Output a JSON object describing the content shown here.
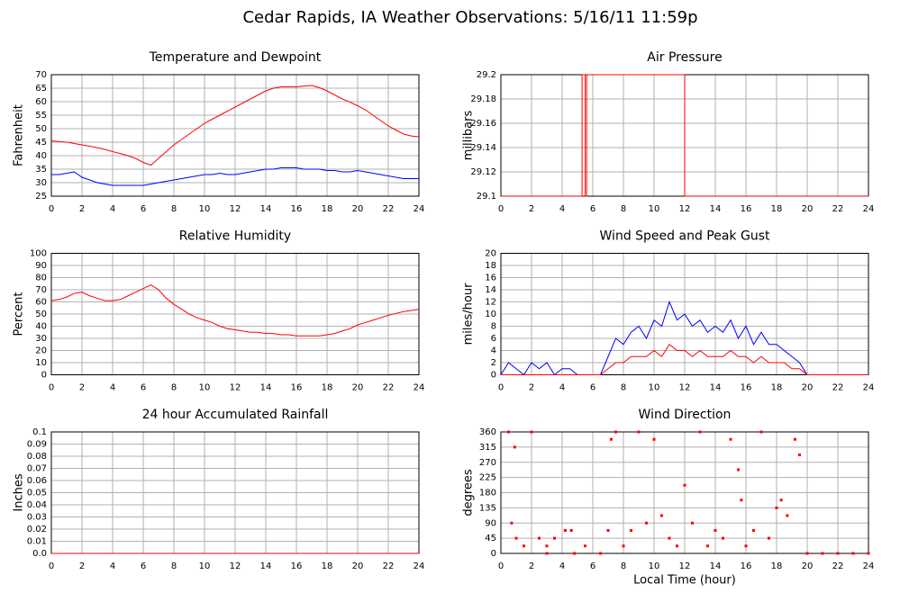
{
  "title": "Cedar Rapids, IA Weather Observations: 5/16/11 11:59p",
  "chart_data": [
    {
      "type": "line",
      "title": "Temperature and Dewpoint",
      "ylabel": "Fahrenheit",
      "x": [
        0,
        0.5,
        1,
        1.5,
        2,
        2.5,
        3,
        3.5,
        4,
        4.5,
        5,
        5.5,
        6,
        6.5,
        7,
        7.5,
        8,
        8.5,
        9,
        9.5,
        10,
        10.5,
        11,
        11.5,
        12,
        12.5,
        13,
        13.5,
        14,
        14.5,
        15,
        15.5,
        16,
        16.5,
        17,
        17.5,
        18,
        18.5,
        19,
        19.5,
        20,
        20.5,
        21,
        21.5,
        22,
        22.5,
        23,
        23.5,
        24
      ],
      "series": [
        {
          "color": "#ff0000",
          "values": [
            45.5,
            45.2,
            45,
            44.5,
            44,
            43.5,
            43,
            42.3,
            41.5,
            40.8,
            40,
            39,
            37.5,
            36.5,
            39,
            41.5,
            44,
            46,
            48,
            50,
            52,
            53.5,
            55,
            56.5,
            58,
            59.5,
            61,
            62.5,
            64,
            65,
            65.5,
            65.5,
            65.5,
            65.8,
            66,
            65.2,
            64,
            62.5,
            61,
            59.8,
            58.5,
            57,
            55,
            53,
            51,
            49.5,
            48,
            47.3,
            47
          ]
        },
        {
          "color": "#0000ff",
          "values": [
            33,
            33,
            33.5,
            34,
            32,
            31,
            30,
            29.5,
            29,
            29,
            29,
            29,
            29,
            29.5,
            30,
            30.5,
            31,
            31.5,
            32,
            32.5,
            33,
            33,
            33.5,
            33,
            33,
            33.5,
            34,
            34.5,
            35,
            35,
            35.5,
            35.5,
            35.5,
            35,
            35,
            35,
            34.5,
            34.5,
            34,
            34,
            34.5,
            34,
            33.5,
            33,
            32.5,
            32,
            31.5,
            31.5,
            31.5
          ]
        }
      ],
      "xlim": [
        0,
        24
      ],
      "xticks": [
        0,
        2,
        4,
        6,
        8,
        10,
        12,
        14,
        16,
        18,
        20,
        22,
        24
      ],
      "ylim": [
        25,
        70
      ],
      "yticks": [
        25,
        30,
        35,
        40,
        45,
        50,
        55,
        60,
        65,
        70
      ],
      "grid": true
    },
    {
      "type": "line",
      "title": "Air Pressure",
      "ylabel": "millibars",
      "x": [
        0,
        5.3,
        5.3,
        5.5,
        5.5,
        5.6,
        5.6,
        12,
        12,
        24
      ],
      "series": [
        {
          "color": "#ff0000",
          "values": [
            29.1,
            29.1,
            29.2,
            29.2,
            29.1,
            29.1,
            29.2,
            29.2,
            29.1,
            29.1
          ]
        }
      ],
      "xlim": [
        0,
        24
      ],
      "xticks": [
        0,
        2,
        4,
        6,
        8,
        10,
        12,
        14,
        16,
        18,
        20,
        22,
        24
      ],
      "ylim": [
        29.1,
        29.2
      ],
      "yticks": [
        29.1,
        29.12,
        29.14,
        29.16,
        29.18,
        29.2
      ],
      "grid": true
    },
    {
      "type": "line",
      "title": "Relative Humidity",
      "ylabel": "Percent",
      "x": [
        0,
        0.5,
        1,
        1.5,
        2,
        2.5,
        3,
        3.5,
        4,
        4.5,
        5,
        5.5,
        6,
        6.5,
        7,
        7.5,
        8,
        8.5,
        9,
        9.5,
        10,
        10.5,
        11,
        11.5,
        12,
        12.5,
        13,
        13.5,
        14,
        14.5,
        15,
        15.5,
        16,
        16.5,
        17,
        17.5,
        18,
        18.5,
        19,
        19.5,
        20,
        20.5,
        21,
        21.5,
        22,
        22.5,
        23,
        23.5,
        24
      ],
      "series": [
        {
          "color": "#ff0000",
          "values": [
            61,
            62,
            64,
            67,
            68,
            65,
            63,
            61,
            61,
            62,
            65,
            68,
            71,
            74,
            70,
            63,
            58,
            54,
            50,
            47,
            45,
            43,
            40,
            38,
            37,
            36,
            35,
            35,
            34,
            34,
            33,
            33,
            32,
            32,
            32,
            32,
            33,
            34,
            36,
            38,
            41,
            43,
            45,
            47,
            49,
            50.5,
            52,
            53,
            54
          ]
        }
      ],
      "xlim": [
        0,
        24
      ],
      "xticks": [
        0,
        2,
        4,
        6,
        8,
        10,
        12,
        14,
        16,
        18,
        20,
        22,
        24
      ],
      "ylim": [
        0,
        100
      ],
      "yticks": [
        0,
        10,
        20,
        30,
        40,
        50,
        60,
        70,
        80,
        90,
        100
      ],
      "grid": true
    },
    {
      "type": "line",
      "title": "Wind Speed and Peak Gust",
      "ylabel": "miles/hour",
      "x": [
        0,
        0.5,
        1,
        1.5,
        2,
        2.5,
        3,
        3.5,
        4,
        4.5,
        5,
        5.5,
        6,
        6.5,
        7,
        7.5,
        8,
        8.5,
        9,
        9.5,
        10,
        10.5,
        11,
        11.5,
        12,
        12.5,
        13,
        13.5,
        14,
        14.5,
        15,
        15.5,
        16,
        16.5,
        17,
        17.5,
        18,
        18.5,
        19,
        19.5,
        20,
        20.5,
        21,
        21.5,
        22,
        22.5,
        23,
        23.5,
        24
      ],
      "series": [
        {
          "color": "#0000ff",
          "values": [
            0,
            2,
            1,
            0,
            2,
            1,
            2,
            0,
            1,
            1,
            0,
            0,
            0,
            0,
            3,
            6,
            5,
            7,
            8,
            6,
            9,
            8,
            12,
            9,
            10,
            8,
            9,
            7,
            8,
            7,
            9,
            6,
            8,
            5,
            7,
            5,
            5,
            4,
            3,
            2,
            0,
            0,
            0,
            0,
            0,
            0,
            0,
            0,
            0
          ]
        },
        {
          "color": "#ff0000",
          "values": [
            0,
            0,
            0,
            0,
            0,
            0,
            0,
            0,
            0,
            0,
            0,
            0,
            0,
            0,
            1,
            2,
            2,
            3,
            3,
            3,
            4,
            3,
            5,
            4,
            4,
            3,
            4,
            3,
            3,
            3,
            4,
            3,
            3,
            2,
            3,
            2,
            2,
            2,
            1,
            1,
            0,
            0,
            0,
            0,
            0,
            0,
            0,
            0,
            0
          ]
        }
      ],
      "xlim": [
        0,
        24
      ],
      "xticks": [
        0,
        2,
        4,
        6,
        8,
        10,
        12,
        14,
        16,
        18,
        20,
        22,
        24
      ],
      "ylim": [
        0,
        20
      ],
      "yticks": [
        0,
        2,
        4,
        6,
        8,
        10,
        12,
        14,
        16,
        18,
        20
      ],
      "grid": true
    },
    {
      "type": "line",
      "title": "24 hour Accumulated Rainfall",
      "ylabel": "Inches",
      "x": [
        0,
        24
      ],
      "series": [
        {
          "color": "#ff0000",
          "values": [
            0,
            0
          ]
        }
      ],
      "xlim": [
        0,
        24
      ],
      "xticks": [
        0,
        2,
        4,
        6,
        8,
        10,
        12,
        14,
        16,
        18,
        20,
        22,
        24
      ],
      "ylim": [
        0,
        0.1
      ],
      "yticks": [
        {
          "value": 0,
          "label": "0.0"
        },
        0.01,
        0.02,
        0.03,
        0.04,
        0.05,
        0.06,
        0.07,
        0.08,
        0.09,
        0.1
      ],
      "grid": true
    },
    {
      "type": "scatter",
      "title": "Wind Direction",
      "ylabel": "degrees",
      "xlabel": "Local Time (hour)",
      "x": [
        0.5,
        0.7,
        0.9,
        1,
        1.5,
        2,
        2.5,
        3,
        3.5,
        4.2,
        4.6,
        5.5,
        7,
        7.2,
        7.5,
        8,
        8.5,
        9,
        9.5,
        10,
        10.5,
        11,
        11.5,
        12,
        12.5,
        13,
        13.5,
        14,
        14.5,
        15,
        15.5,
        15.7,
        16,
        16.5,
        17,
        17.5,
        18,
        18.3,
        18.7,
        19.2,
        19.5,
        20,
        21,
        22,
        23,
        24,
        3,
        4.8,
        6.5
      ],
      "series": [
        {
          "color": "#ff0000",
          "values": [
            360,
            90,
            315,
            45,
            22,
            360,
            45,
            22,
            45,
            68,
            68,
            22,
            68,
            338,
            360,
            22,
            68,
            360,
            90,
            338,
            112,
            45,
            22,
            202,
            90,
            360,
            22,
            68,
            45,
            338,
            248,
            158,
            22,
            68,
            360,
            45,
            135,
            158,
            112,
            338,
            292,
            0,
            0,
            0,
            0,
            0,
            0,
            0,
            0
          ]
        }
      ],
      "xlim": [
        0,
        24
      ],
      "xticks": [
        0,
        2,
        4,
        6,
        8,
        10,
        12,
        14,
        16,
        18,
        20,
        22,
        24
      ],
      "ylim": [
        0,
        360
      ],
      "yticks": [
        0,
        45,
        90,
        135,
        180,
        225,
        270,
        315,
        360
      ],
      "grid": true
    }
  ]
}
